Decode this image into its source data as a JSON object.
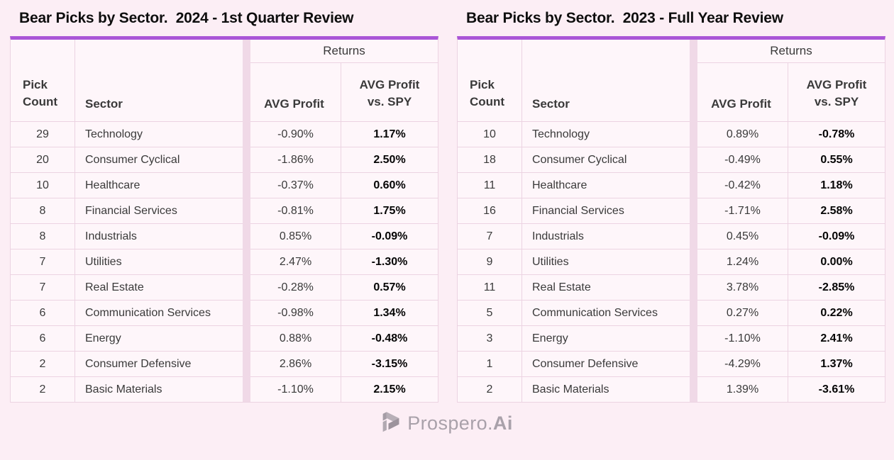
{
  "colors": {
    "accent_purple": "#aa55d7",
    "page_background": "#fceef5",
    "cell_background": "#fef6fa",
    "stripe": "#f0d9e7",
    "border": "#ecd3e2",
    "logo_gray": "#a9a1aa"
  },
  "chart_data": [
    {
      "type": "table",
      "title": "Bear Picks by Sector.  2024 - 1st Quarter Review",
      "column_group": "Returns",
      "columns": {
        "pick_count": "Pick\nCount",
        "sector": "Sector",
        "avg_profit": "AVG Profit",
        "avg_profit_vs_spy": "AVG Profit\nvs. SPY"
      },
      "rows": [
        {
          "pick_count": "29",
          "sector": "Technology",
          "avg_profit": "-0.90%",
          "avg_profit_vs_spy": "1.17%"
        },
        {
          "pick_count": "20",
          "sector": "Consumer Cyclical",
          "avg_profit": "-1.86%",
          "avg_profit_vs_spy": "2.50%"
        },
        {
          "pick_count": "10",
          "sector": "Healthcare",
          "avg_profit": "-0.37%",
          "avg_profit_vs_spy": "0.60%"
        },
        {
          "pick_count": "8",
          "sector": "Financial Services",
          "avg_profit": "-0.81%",
          "avg_profit_vs_spy": "1.75%"
        },
        {
          "pick_count": "8",
          "sector": "Industrials",
          "avg_profit": "0.85%",
          "avg_profit_vs_spy": "-0.09%"
        },
        {
          "pick_count": "7",
          "sector": "Utilities",
          "avg_profit": "2.47%",
          "avg_profit_vs_spy": "-1.30%"
        },
        {
          "pick_count": "7",
          "sector": "Real Estate",
          "avg_profit": "-0.28%",
          "avg_profit_vs_spy": "0.57%"
        },
        {
          "pick_count": "6",
          "sector": "Communication Services",
          "avg_profit": "-0.98%",
          "avg_profit_vs_spy": "1.34%"
        },
        {
          "pick_count": "6",
          "sector": "Energy",
          "avg_profit": "0.88%",
          "avg_profit_vs_spy": "-0.48%"
        },
        {
          "pick_count": "2",
          "sector": "Consumer Defensive",
          "avg_profit": "2.86%",
          "avg_profit_vs_spy": "-3.15%"
        },
        {
          "pick_count": "2",
          "sector": "Basic Materials",
          "avg_profit": "-1.10%",
          "avg_profit_vs_spy": "2.15%"
        }
      ]
    },
    {
      "type": "table",
      "title": "Bear Picks by Sector.  2023 - Full Year Review",
      "column_group": "Returns",
      "columns": {
        "pick_count": "Pick\nCount",
        "sector": "Sector",
        "avg_profit": "AVG Profit",
        "avg_profit_vs_spy": "AVG Profit\nvs. SPY"
      },
      "rows": [
        {
          "pick_count": "10",
          "sector": "Technology",
          "avg_profit": "0.89%",
          "avg_profit_vs_spy": "-0.78%"
        },
        {
          "pick_count": "18",
          "sector": "Consumer Cyclical",
          "avg_profit": "-0.49%",
          "avg_profit_vs_spy": "0.55%"
        },
        {
          "pick_count": "11",
          "sector": "Healthcare",
          "avg_profit": "-0.42%",
          "avg_profit_vs_spy": "1.18%"
        },
        {
          "pick_count": "16",
          "sector": "Financial Services",
          "avg_profit": "-1.71%",
          "avg_profit_vs_spy": "2.58%"
        },
        {
          "pick_count": "7",
          "sector": "Industrials",
          "avg_profit": "0.45%",
          "avg_profit_vs_spy": "-0.09%"
        },
        {
          "pick_count": "9",
          "sector": "Utilities",
          "avg_profit": "1.24%",
          "avg_profit_vs_spy": "0.00%"
        },
        {
          "pick_count": "11",
          "sector": "Real Estate",
          "avg_profit": "3.78%",
          "avg_profit_vs_spy": "-2.85%"
        },
        {
          "pick_count": "5",
          "sector": "Communication Services",
          "avg_profit": "0.27%",
          "avg_profit_vs_spy": "0.22%"
        },
        {
          "pick_count": "3",
          "sector": "Energy",
          "avg_profit": "-1.10%",
          "avg_profit_vs_spy": "2.41%"
        },
        {
          "pick_count": "1",
          "sector": "Consumer Defensive",
          "avg_profit": "-4.29%",
          "avg_profit_vs_spy": "1.37%"
        },
        {
          "pick_count": "2",
          "sector": "Basic Materials",
          "avg_profit": "1.39%",
          "avg_profit_vs_spy": "-3.61%"
        }
      ]
    }
  ],
  "footer": {
    "logo_text_regular": "Prospero.",
    "logo_text_bold": "Ai"
  }
}
